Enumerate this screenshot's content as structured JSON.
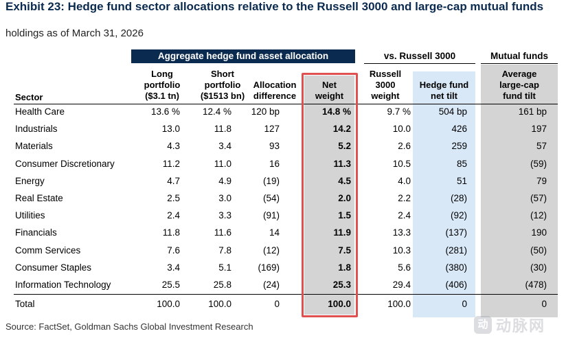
{
  "title": "Exhibit 23: Hedge fund sector allocations relative to the Russell 3000 and large-cap mutual funds",
  "subtitle": "holdings as of March 31, 2026",
  "groups": {
    "hedge_fund": "Aggregate hedge fund asset allocation",
    "russell": "vs. Russell 3000",
    "mutual": "Mutual funds"
  },
  "headers": {
    "sector": "Sector",
    "long": [
      "Long",
      "portfolio",
      "($3.1 tn)"
    ],
    "short": [
      "Short",
      "portfolio",
      "($1513 bn)"
    ],
    "alloc": [
      "Allocation",
      "difference"
    ],
    "net": [
      "Net",
      "weight"
    ],
    "russell_w": [
      "Russell",
      "3000",
      "weight"
    ],
    "tilt": [
      "Hedge fund",
      "net tilt"
    ],
    "mf_tilt": [
      "Average",
      "large-cap",
      "fund tilt"
    ]
  },
  "rows": [
    {
      "sector": "Health Care",
      "long": "13.6 %",
      "short": "12.4 %",
      "alloc": "120 bp",
      "net": "14.8 %",
      "russell": "9.7 %",
      "tilt": "504 bp",
      "mf": "161 bp"
    },
    {
      "sector": "Industrials",
      "long": "13.0",
      "short": "11.8",
      "alloc": "127",
      "net": "14.2",
      "russell": "10.0",
      "tilt": "426",
      "mf": "197"
    },
    {
      "sector": "Materials",
      "long": "4.3",
      "short": "3.4",
      "alloc": "93",
      "net": "5.2",
      "russell": "2.6",
      "tilt": "259",
      "mf": "57"
    },
    {
      "sector": "Consumer Discretionary",
      "long": "11.2",
      "short": "11.0",
      "alloc": "16",
      "net": "11.3",
      "russell": "10.5",
      "tilt": "85",
      "mf": "(59)"
    },
    {
      "sector": "Energy",
      "long": "4.7",
      "short": "4.9",
      "alloc": "(19)",
      "net": "4.5",
      "russell": "4.0",
      "tilt": "51",
      "mf": "79"
    },
    {
      "sector": "Real Estate",
      "long": "2.5",
      "short": "3.0",
      "alloc": "(54)",
      "net": "2.0",
      "russell": "2.2",
      "tilt": "(28)",
      "mf": "(57)"
    },
    {
      "sector": "Utilities",
      "long": "2.4",
      "short": "3.3",
      "alloc": "(91)",
      "net": "1.5",
      "russell": "2.4",
      "tilt": "(92)",
      "mf": "(12)"
    },
    {
      "sector": "Financials",
      "long": "11.8",
      "short": "11.6",
      "alloc": "14",
      "net": "11.9",
      "russell": "13.3",
      "tilt": "(137)",
      "mf": "190"
    },
    {
      "sector": "Comm Services",
      "long": "7.6",
      "short": "7.8",
      "alloc": "(12)",
      "net": "7.5",
      "russell": "10.3",
      "tilt": "(281)",
      "mf": "(50)"
    },
    {
      "sector": "Consumer Staples",
      "long": "3.4",
      "short": "5.1",
      "alloc": "(169)",
      "net": "1.8",
      "russell": "5.6",
      "tilt": "(380)",
      "mf": "(30)"
    },
    {
      "sector": "Information Technology",
      "long": "25.5",
      "short": "25.8",
      "alloc": "(24)",
      "net": "25.3",
      "russell": "29.4",
      "tilt": "(406)",
      "mf": "(478)"
    }
  ],
  "total": {
    "sector": "Total",
    "long": "100.0",
    "short": "100.0",
    "alloc": "0",
    "net": "100.0",
    "russell": "100.0",
    "tilt": "0",
    "mf": "0"
  },
  "source": "Source: FactSet, Goldman Sachs Global Investment Research",
  "watermark": {
    "badge": "动",
    "text": "动脉网"
  },
  "colors": {
    "title": "#0b2a4f",
    "header_band": "#0b2a4f",
    "tilt_shade": "#d8e8f7",
    "grey_shade": "#d4d4d4",
    "highlight_box": "#e05050"
  }
}
